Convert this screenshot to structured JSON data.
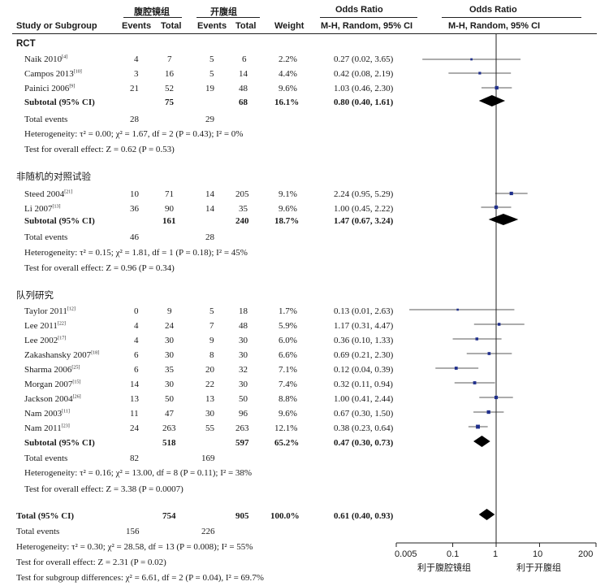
{
  "headers": {
    "group1": "腹腔镜组",
    "group2": "开腹组",
    "odds_ratio": "Odds Ratio",
    "study": "Study or Subgroup",
    "events1": "Events",
    "total1": "Total",
    "events2": "Events",
    "total2": "Total",
    "weight": "Weight",
    "method_left": "M-H, Random, 95% CI",
    "method_right": "M-H, Random, 95% CI"
  },
  "sections": [
    {
      "title": "RCT",
      "studies": [
        {
          "name": "Naik 2010",
          "ref": "[4]",
          "e1": "4",
          "t1": "7",
          "e2": "5",
          "t2": "6",
          "weight": "2.2%",
          "ci": "0.27 (0.02, 3.65)"
        },
        {
          "name": "Campos 2013",
          "ref": "[10]",
          "e1": "3",
          "t1": "16",
          "e2": "5",
          "t2": "14",
          "weight": "4.4%",
          "ci": "0.42 (0.08, 2.19)"
        },
        {
          "name": "Painici 2006",
          "ref": "[9]",
          "e1": "21",
          "t1": "52",
          "e2": "19",
          "t2": "48",
          "weight": "9.6%",
          "ci": "1.03 (0.46, 2.30)"
        }
      ],
      "subtotal": {
        "label": "Subtotal (95% CI)",
        "t1": "75",
        "t2": "68",
        "weight": "16.1%",
        "ci": "0.80 (0.40, 1.61)"
      },
      "total_events": {
        "label": "Total events",
        "e1": "28",
        "e2": "29"
      },
      "heterogeneity": "Heterogeneity: τ² = 0.00; χ² = 1.67, df = 2 (P = 0.43); I² = 0%",
      "overall": "Test for overall effect: Z = 0.62 (P = 0.53)"
    },
    {
      "title": "非随机的对照试验",
      "studies": [
        {
          "name": "Steed 2004",
          "ref": "[21]",
          "e1": "10",
          "t1": "71",
          "e2": "14",
          "t2": "205",
          "weight": "9.1%",
          "ci": "2.24 (0.95, 5.29)"
        },
        {
          "name": "Li 2007",
          "ref": "[13]",
          "e1": "36",
          "t1": "90",
          "e2": "14",
          "t2": "35",
          "weight": "9.6%",
          "ci": "1.00 (0.45, 2.22)"
        }
      ],
      "subtotal": {
        "label": "Subtotal (95% CI)",
        "t1": "161",
        "t2": "240",
        "weight": "18.7%",
        "ci": "1.47 (0.67, 3.24)"
      },
      "total_events": {
        "label": "Total events",
        "e1": "46",
        "e2": "28"
      },
      "heterogeneity": "Heterogeneity: τ² = 0.15; χ² = 1.81, df = 1 (P = 0.18); I² = 45%",
      "overall": "Test for overall effect: Z = 0.96 (P = 0.34)"
    },
    {
      "title": "队列研究",
      "studies": [
        {
          "name": "Taylor 2011",
          "ref": "[12]",
          "e1": "0",
          "t1": "9",
          "e2": "5",
          "t2": "18",
          "weight": "1.7%",
          "ci": "0.13 (0.01, 2.63)"
        },
        {
          "name": "Lee 2011",
          "ref": "[22]",
          "e1": "4",
          "t1": "24",
          "e2": "7",
          "t2": "48",
          "weight": "5.9%",
          "ci": "1.17 (0.31, 4.47)"
        },
        {
          "name": "Lee 2002",
          "ref": "[17]",
          "e1": "4",
          "t1": "30",
          "e2": "9",
          "t2": "30",
          "weight": "6.0%",
          "ci": "0.36 (0.10, 1.33)"
        },
        {
          "name": "Zakashansky 2007",
          "ref": "[18]",
          "e1": "6",
          "t1": "30",
          "e2": "8",
          "t2": "30",
          "weight": "6.6%",
          "ci": "0.69 (0.21, 2.30)"
        },
        {
          "name": "Sharma 2006",
          "ref": "[25]",
          "e1": "6",
          "t1": "35",
          "e2": "20",
          "t2": "32",
          "weight": "7.1%",
          "ci": "0.12 (0.04, 0.39)"
        },
        {
          "name": "Morgan 2007",
          "ref": "[15]",
          "e1": "14",
          "t1": "30",
          "e2": "22",
          "t2": "30",
          "weight": "7.4%",
          "ci": "0.32 (0.11, 0.94)"
        },
        {
          "name": "Jackson 2004",
          "ref": "[26]",
          "e1": "13",
          "t1": "50",
          "e2": "13",
          "t2": "50",
          "weight": "8.8%",
          "ci": "1.00 (0.41, 2.44)"
        },
        {
          "name": "Nam 2003",
          "ref": "[11]",
          "e1": "11",
          "t1": "47",
          "e2": "30",
          "t2": "96",
          "weight": "9.6%",
          "ci": "0.67 (0.30, 1.50)"
        },
        {
          "name": "Nam 2011",
          "ref": "[23]",
          "e1": "24",
          "t1": "263",
          "e2": "55",
          "t2": "263",
          "weight": "12.1%",
          "ci": "0.38 (0.23, 0.64)"
        }
      ],
      "subtotal": {
        "label": "Subtotal (95% CI)",
        "t1": "518",
        "t2": "597",
        "weight": "65.2%",
        "ci": "0.47 (0.30, 0.73)"
      },
      "total_events": {
        "label": "Total events",
        "e1": "82",
        "e2": "169"
      },
      "heterogeneity": "Heterogeneity: τ² = 0.16; χ² = 13.00, df = 8 (P = 0.11); I² = 38%",
      "overall": "Test for overall effect: Z = 3.38 (P = 0.0007)"
    }
  ],
  "total": {
    "label": "Total (95% CI)",
    "t1": "754",
    "t2": "905",
    "weight": "100.0%",
    "ci": "0.61 (0.40, 0.93)"
  },
  "total_events": {
    "label": "Total events",
    "e1": "156",
    "e2": "226"
  },
  "heterogeneity": "Heterogeneity: τ² = 0.30; χ² = 28.58, df = 13 (P = 0.008); I² = 55%",
  "overall": "Test for overall effect: Z = 2.31 (P = 0.02)",
  "subgroup_diff": "Test for subgroup differences: χ² = 6.61, df = 2 (P = 0.04), I² = 69.7%",
  "axis": {
    "ticks": [
      "0.005",
      "0.1",
      "1",
      "10",
      "200"
    ],
    "favours_left": "利于腹腔镜组",
    "favours_right": "利于开腹组"
  },
  "colors": {
    "marker": "#1f2f8c",
    "line": "#222222"
  },
  "chart_data": {
    "type": "forest",
    "x_scale": "log",
    "xlim": [
      0.005,
      200
    ],
    "reference_line": 1,
    "studies": [
      {
        "name": "Naik 2010",
        "or": 0.27,
        "lo": 0.02,
        "hi": 3.65,
        "weight": 2.2
      },
      {
        "name": "Campos 2013",
        "or": 0.42,
        "lo": 0.08,
        "hi": 2.19,
        "weight": 4.4
      },
      {
        "name": "Painici 2006",
        "or": 1.03,
        "lo": 0.46,
        "hi": 2.3,
        "weight": 9.6
      },
      {
        "name": "Steed 2004",
        "or": 2.24,
        "lo": 0.95,
        "hi": 5.29,
        "weight": 9.1
      },
      {
        "name": "Li 2007",
        "or": 1.0,
        "lo": 0.45,
        "hi": 2.22,
        "weight": 9.6
      },
      {
        "name": "Taylor 2011",
        "or": 0.13,
        "lo": 0.01,
        "hi": 2.63,
        "weight": 1.7
      },
      {
        "name": "Lee 2011",
        "or": 1.17,
        "lo": 0.31,
        "hi": 4.47,
        "weight": 5.9
      },
      {
        "name": "Lee 2002",
        "or": 0.36,
        "lo": 0.1,
        "hi": 1.33,
        "weight": 6.0
      },
      {
        "name": "Zakashansky 2007",
        "or": 0.69,
        "lo": 0.21,
        "hi": 2.3,
        "weight": 6.6
      },
      {
        "name": "Sharma 2006",
        "or": 0.12,
        "lo": 0.04,
        "hi": 0.39,
        "weight": 7.1
      },
      {
        "name": "Morgan 2007",
        "or": 0.32,
        "lo": 0.11,
        "hi": 0.94,
        "weight": 7.4
      },
      {
        "name": "Jackson 2004",
        "or": 1.0,
        "lo": 0.41,
        "hi": 2.44,
        "weight": 8.8
      },
      {
        "name": "Nam 2003",
        "or": 0.67,
        "lo": 0.3,
        "hi": 1.5,
        "weight": 9.6
      },
      {
        "name": "Nam 2011",
        "or": 0.38,
        "lo": 0.23,
        "hi": 0.64,
        "weight": 12.1
      }
    ],
    "subtotals": [
      {
        "name": "RCT",
        "or": 0.8,
        "lo": 0.4,
        "hi": 1.61
      },
      {
        "name": "非随机的对照试验",
        "or": 1.47,
        "lo": 0.67,
        "hi": 3.24
      },
      {
        "name": "队列研究",
        "or": 0.47,
        "lo": 0.3,
        "hi": 0.73
      }
    ],
    "overall": {
      "or": 0.61,
      "lo": 0.4,
      "hi": 0.93
    }
  }
}
